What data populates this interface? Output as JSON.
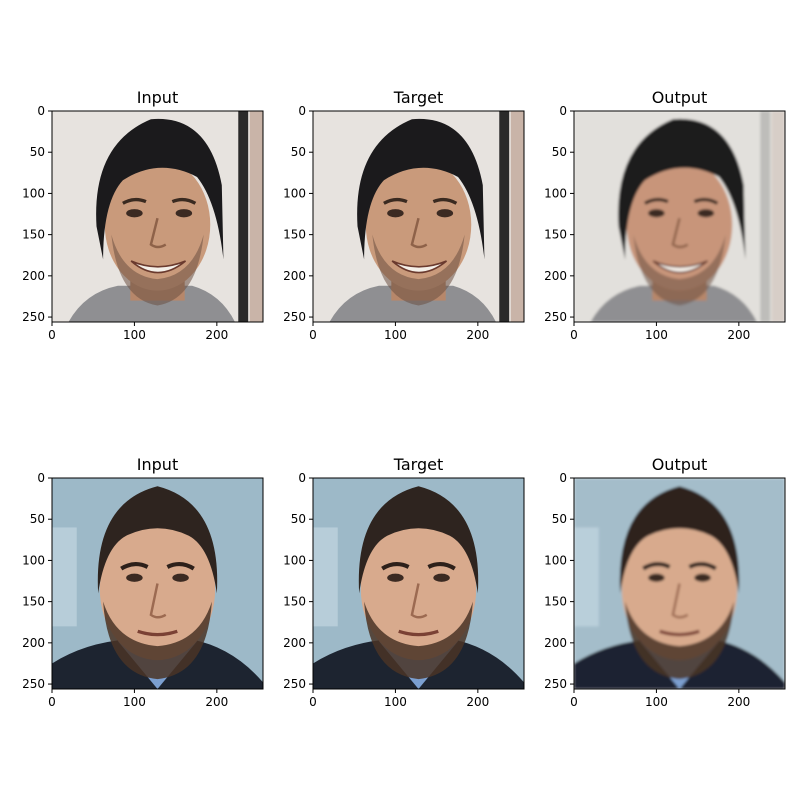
{
  "figure": {
    "panels": [
      {
        "title": "Input",
        "person": "beanie",
        "variant": "input"
      },
      {
        "title": "Target",
        "person": "beanie",
        "variant": "target"
      },
      {
        "title": "Output",
        "person": "beanie",
        "variant": "output"
      },
      {
        "title": "Input",
        "person": "beard",
        "variant": "input"
      },
      {
        "title": "Target",
        "person": "beard",
        "variant": "target"
      },
      {
        "title": "Output",
        "person": "beard",
        "variant": "output"
      }
    ],
    "axis": {
      "x_ticks": [
        {
          "value": 0,
          "label": "0"
        },
        {
          "value": 100,
          "label": "100"
        },
        {
          "value": 200,
          "label": "200"
        }
      ],
      "y_ticks": [
        {
          "value": 0,
          "label": "0"
        },
        {
          "value": 50,
          "label": "50"
        },
        {
          "value": 100,
          "label": "100"
        },
        {
          "value": 150,
          "label": "150"
        },
        {
          "value": 200,
          "label": "200"
        },
        {
          "value": 250,
          "label": "250"
        }
      ],
      "xlim": [
        0,
        256
      ],
      "ylim": [
        0,
        256
      ]
    },
    "colors": {
      "beanie_background": "#e7e3df",
      "beanie_skin": "#c99a7b",
      "beanie_hat": "#1b1a1c",
      "beard_background": "#9db9c8",
      "beard_skin": "#d8aa8d",
      "beard_hair": "#2e241f",
      "beard_suit": "#1d2430",
      "beard_shirt": "#7b9fd0"
    }
  }
}
